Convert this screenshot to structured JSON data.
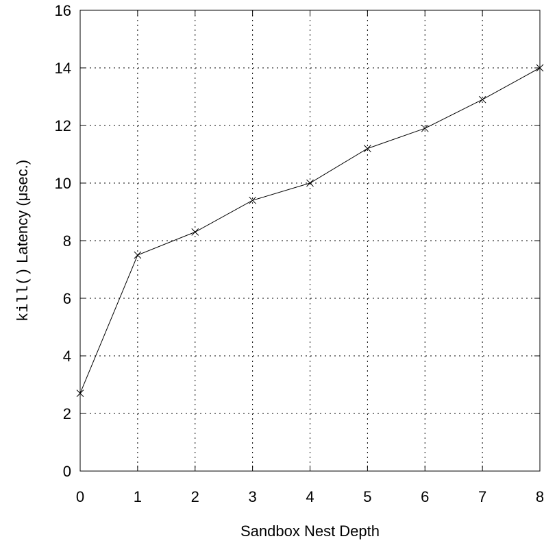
{
  "chart_data": {
    "type": "line",
    "xlabel": "Sandbox Nest Depth",
    "ylabel_code": "kill()",
    "ylabel_text": " Latency (μsec.)",
    "xlim": [
      0,
      8
    ],
    "ylim": [
      0,
      16
    ],
    "xticks": [
      0,
      1,
      2,
      3,
      4,
      5,
      6,
      7,
      8
    ],
    "yticks": [
      0,
      2,
      4,
      6,
      8,
      10,
      12,
      14,
      16
    ],
    "grid": true,
    "legend": "none",
    "series": [
      {
        "marker": "x",
        "color": "#000000",
        "x": [
          0,
          1,
          2,
          3,
          4,
          5,
          6,
          7,
          8
        ],
        "y": [
          2.7,
          7.5,
          8.3,
          9.4,
          10.0,
          11.2,
          11.9,
          12.9,
          14.0
        ]
      }
    ]
  }
}
